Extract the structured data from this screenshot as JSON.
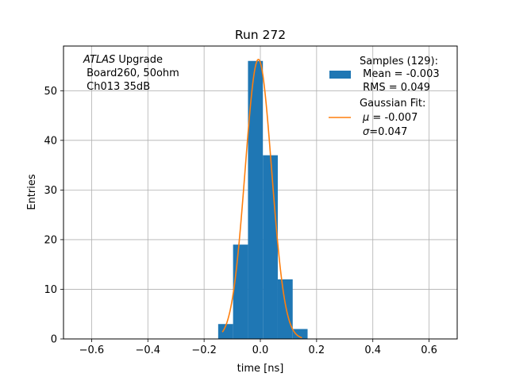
{
  "chart_data": {
    "type": "bar",
    "title": "Run 272",
    "xlabel": "time [ns]",
    "ylabel": "Entries",
    "xlim": [
      -0.7,
      0.7
    ],
    "ylim": [
      0,
      59
    ],
    "xticks": [
      -0.6,
      -0.4,
      -0.2,
      0.0,
      0.2,
      0.4,
      0.6
    ],
    "xtick_labels": [
      "−0.6",
      "−0.4",
      "−0.2",
      "0.0",
      "0.2",
      "0.4",
      "0.6"
    ],
    "yticks": [
      0,
      10,
      20,
      30,
      40,
      50
    ],
    "ytick_labels": [
      "0",
      "10",
      "20",
      "30",
      "40",
      "50"
    ],
    "grid": true,
    "legend_position": "top-right",
    "histogram": {
      "bin_edges": [
        -0.15,
        -0.097,
        -0.044,
        0.009,
        0.062,
        0.115,
        0.168
      ],
      "counts": [
        3,
        19,
        56,
        37,
        12,
        2
      ],
      "color": "#1f77b4"
    },
    "gaussian_fit": {
      "mu": -0.007,
      "sigma": 0.047,
      "amplitude": 56.3,
      "x_range": [
        -0.135,
        0.148
      ],
      "color": "#ff7f0e"
    },
    "annotation": {
      "italic_word": "ATLAS",
      "line1_rest": " Upgrade",
      "line2": " Board260, 50ohm",
      "line3": " Ch013 35dB"
    },
    "legend": {
      "samples": {
        "line1": "Samples (129):",
        "line2": " Mean = -0.003",
        "line3": " RMS = 0.049",
        "color": "#1f77b4"
      },
      "fit": {
        "line1": "Gaussian Fit:",
        "line2_symbol": "μ",
        "line2_rest": " = -0.007",
        "line3_symbol": "σ",
        "line3_rest": "=0.047",
        "color": "#ff7f0e"
      }
    }
  }
}
